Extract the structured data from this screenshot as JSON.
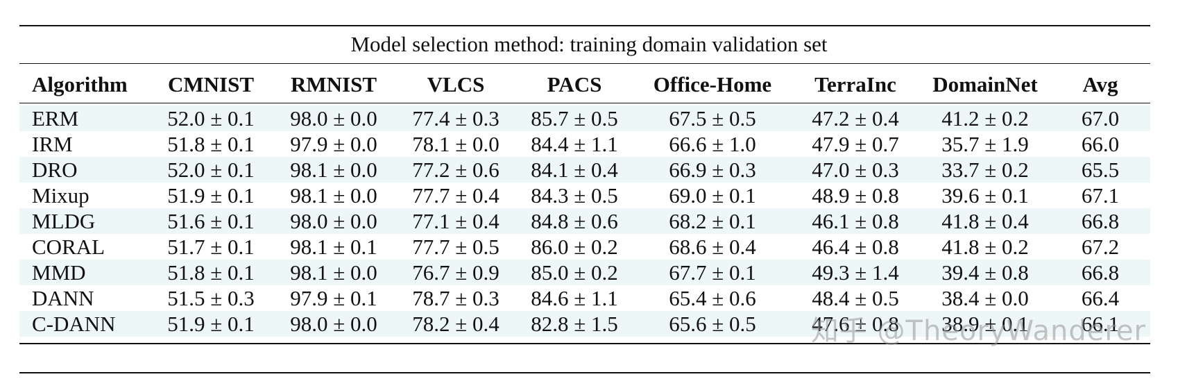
{
  "caption": "Model selection method: training domain validation set",
  "columns": [
    "Algorithm",
    "CMNIST",
    "RMNIST",
    "VLCS",
    "PACS",
    "Office-Home",
    "TerraInc",
    "DomainNet",
    "Avg"
  ],
  "rows": [
    [
      "ERM",
      "52.0 ± 0.1",
      "98.0 ± 0.0",
      "77.4 ± 0.3",
      "85.7 ± 0.5",
      "67.5 ± 0.5",
      "47.2 ± 0.4",
      "41.2 ± 0.2",
      "67.0"
    ],
    [
      "IRM",
      "51.8 ± 0.1",
      "97.9 ± 0.0",
      "78.1 ± 0.0",
      "84.4 ± 1.1",
      "66.6 ± 1.0",
      "47.9 ± 0.7",
      "35.7 ± 1.9",
      "66.0"
    ],
    [
      "DRO",
      "52.0 ± 0.1",
      "98.1 ± 0.0",
      "77.2 ± 0.6",
      "84.1 ± 0.4",
      "66.9 ± 0.3",
      "47.0 ± 0.3",
      "33.7 ± 0.2",
      "65.5"
    ],
    [
      "Mixup",
      "51.9 ± 0.1",
      "98.1 ± 0.0",
      "77.7 ± 0.4",
      "84.3 ± 0.5",
      "69.0 ± 0.1",
      "48.9 ± 0.8",
      "39.6 ± 0.1",
      "67.1"
    ],
    [
      "MLDG",
      "51.6 ± 0.1",
      "98.0 ± 0.0",
      "77.1 ± 0.4",
      "84.8 ± 0.6",
      "68.2 ± 0.1",
      "46.1 ± 0.8",
      "41.8 ± 0.4",
      "66.8"
    ],
    [
      "CORAL",
      "51.7 ± 0.1",
      "98.1 ± 0.1",
      "77.7 ± 0.5",
      "86.0 ± 0.2",
      "68.6 ± 0.4",
      "46.4 ± 0.8",
      "41.8 ± 0.2",
      "67.2"
    ],
    [
      "MMD",
      "51.8 ± 0.1",
      "98.1 ± 0.0",
      "76.7 ± 0.9",
      "85.0 ± 0.2",
      "67.7 ± 0.1",
      "49.3 ± 1.4",
      "39.4 ± 0.8",
      "66.8"
    ],
    [
      "DANN",
      "51.5 ± 0.3",
      "97.9 ± 0.1",
      "78.7 ± 0.3",
      "84.6 ± 1.1",
      "65.4 ± 0.6",
      "48.4 ± 0.5",
      "38.4 ± 0.0",
      "66.4"
    ],
    [
      "C-DANN",
      "51.9 ± 0.1",
      "98.0 ± 0.0",
      "78.2 ± 0.4",
      "82.8 ± 1.5",
      "65.6 ± 0.5",
      "47.6 ± 0.8",
      "38.9 ± 0.1",
      "66.1"
    ]
  ],
  "watermark": "知乎 @TheoryWanderer"
}
